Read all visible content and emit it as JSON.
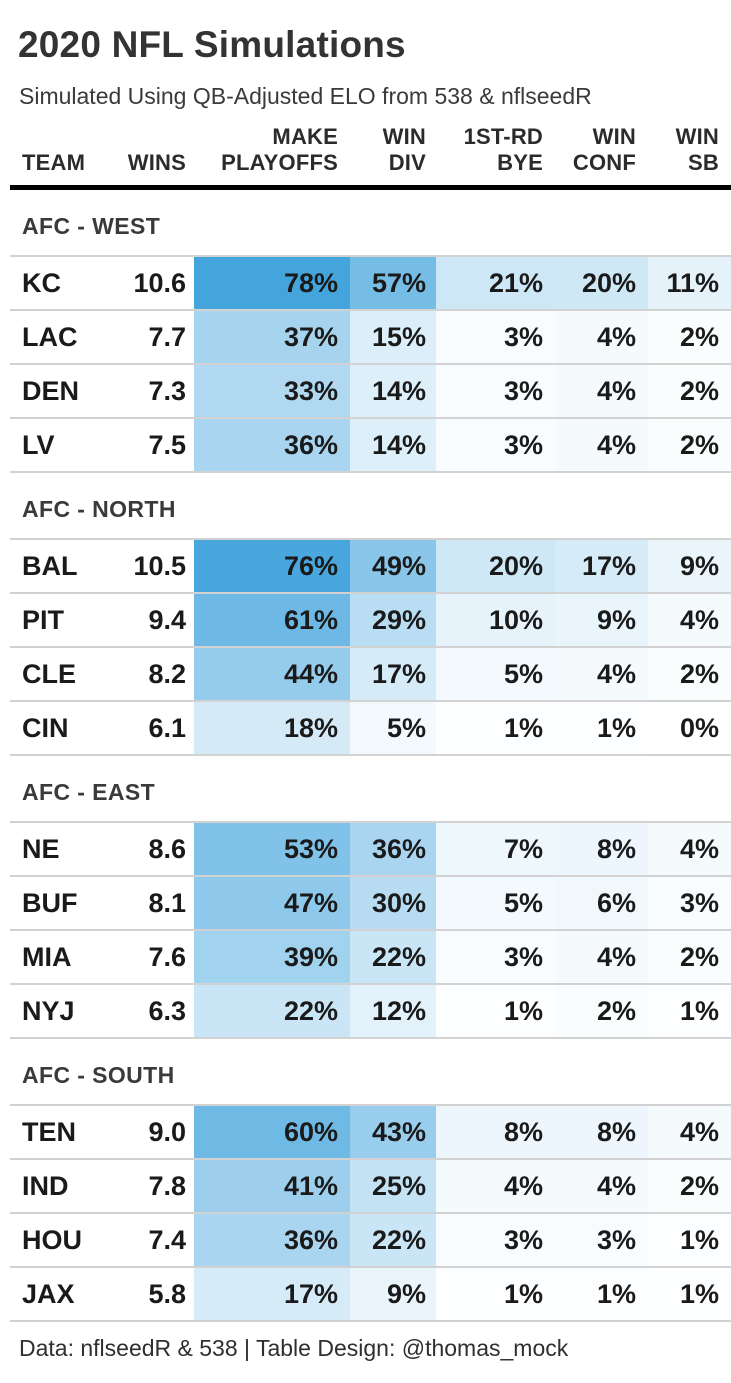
{
  "chart_data": {
    "type": "table",
    "title": "2020 NFL Simulations",
    "subtitle": "Simulated Using QB-Adjusted ELO from 538 & nflseedR",
    "source_note": "Data: nflseedR & 538 | Table Design: @thomas_mock",
    "heat_scale": {
      "min_color": "#FFFFFF",
      "max_color": "#0F8BD4",
      "domain": [
        0,
        100
      ]
    },
    "columns": [
      {
        "key": "team",
        "label": "TEAM",
        "colored": false,
        "suffix": ""
      },
      {
        "key": "wins",
        "label": "WINS",
        "colored": false,
        "suffix": ""
      },
      {
        "key": "make_playoffs",
        "label": "MAKE\nPLAYOFFS",
        "colored": true,
        "suffix": "%"
      },
      {
        "key": "win_div",
        "label": "WIN\nDIV",
        "colored": true,
        "suffix": "%"
      },
      {
        "key": "first_rd_bye",
        "label": "1ST-RD\nBYE",
        "colored": true,
        "suffix": "%"
      },
      {
        "key": "win_conf",
        "label": "WIN\nCONF",
        "colored": true,
        "suffix": "%"
      },
      {
        "key": "win_sb",
        "label": "WIN\nSB",
        "colored": true,
        "suffix": "%"
      }
    ],
    "sections": [
      {
        "label": "AFC - WEST",
        "rows": [
          {
            "team": "KC",
            "wins": "10.6",
            "make_playoffs": 78,
            "win_div": 57,
            "first_rd_bye": 21,
            "win_conf": 20,
            "win_sb": 11
          },
          {
            "team": "LAC",
            "wins": "7.7",
            "make_playoffs": 37,
            "win_div": 15,
            "first_rd_bye": 3,
            "win_conf": 4,
            "win_sb": 2
          },
          {
            "team": "DEN",
            "wins": "7.3",
            "make_playoffs": 33,
            "win_div": 14,
            "first_rd_bye": 3,
            "win_conf": 4,
            "win_sb": 2
          },
          {
            "team": "LV",
            "wins": "7.5",
            "make_playoffs": 36,
            "win_div": 14,
            "first_rd_bye": 3,
            "win_conf": 4,
            "win_sb": 2
          }
        ]
      },
      {
        "label": "AFC - NORTH",
        "rows": [
          {
            "team": "BAL",
            "wins": "10.5",
            "make_playoffs": 76,
            "win_div": 49,
            "first_rd_bye": 20,
            "win_conf": 17,
            "win_sb": 9
          },
          {
            "team": "PIT",
            "wins": "9.4",
            "make_playoffs": 61,
            "win_div": 29,
            "first_rd_bye": 10,
            "win_conf": 9,
            "win_sb": 4
          },
          {
            "team": "CLE",
            "wins": "8.2",
            "make_playoffs": 44,
            "win_div": 17,
            "first_rd_bye": 5,
            "win_conf": 4,
            "win_sb": 2
          },
          {
            "team": "CIN",
            "wins": "6.1",
            "make_playoffs": 18,
            "win_div": 5,
            "first_rd_bye": 1,
            "win_conf": 1,
            "win_sb": 0
          }
        ]
      },
      {
        "label": "AFC - EAST",
        "rows": [
          {
            "team": "NE",
            "wins": "8.6",
            "make_playoffs": 53,
            "win_div": 36,
            "first_rd_bye": 7,
            "win_conf": 8,
            "win_sb": 4
          },
          {
            "team": "BUF",
            "wins": "8.1",
            "make_playoffs": 47,
            "win_div": 30,
            "first_rd_bye": 5,
            "win_conf": 6,
            "win_sb": 3
          },
          {
            "team": "MIA",
            "wins": "7.6",
            "make_playoffs": 39,
            "win_div": 22,
            "first_rd_bye": 3,
            "win_conf": 4,
            "win_sb": 2
          },
          {
            "team": "NYJ",
            "wins": "6.3",
            "make_playoffs": 22,
            "win_div": 12,
            "first_rd_bye": 1,
            "win_conf": 2,
            "win_sb": 1
          }
        ]
      },
      {
        "label": "AFC - SOUTH",
        "rows": [
          {
            "team": "TEN",
            "wins": "9.0",
            "make_playoffs": 60,
            "win_div": 43,
            "first_rd_bye": 8,
            "win_conf": 8,
            "win_sb": 4
          },
          {
            "team": "IND",
            "wins": "7.8",
            "make_playoffs": 41,
            "win_div": 25,
            "first_rd_bye": 4,
            "win_conf": 4,
            "win_sb": 2
          },
          {
            "team": "HOU",
            "wins": "7.4",
            "make_playoffs": 36,
            "win_div": 22,
            "first_rd_bye": 3,
            "win_conf": 3,
            "win_sb": 1
          },
          {
            "team": "JAX",
            "wins": "5.8",
            "make_playoffs": 17,
            "win_div": 9,
            "first_rd_bye": 1,
            "win_conf": 1,
            "win_sb": 1
          }
        ]
      }
    ]
  }
}
